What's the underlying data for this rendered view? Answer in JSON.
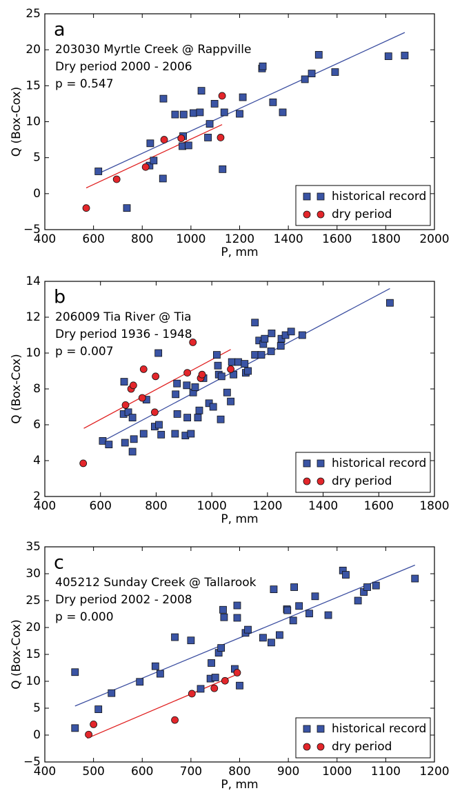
{
  "chart_data": [
    {
      "type": "scatter",
      "panel_label": "a",
      "annotations": [
        "203030 Myrtle Creek @ Rappville",
        "Dry period 2000 - 2006",
        "p = 0.547"
      ],
      "xlabel": "P, mm",
      "ylabel": "Q (Box-Cox)",
      "xlim": [
        400,
        2000
      ],
      "ylim": [
        -5,
        25
      ],
      "xticks": [
        400,
        600,
        800,
        1000,
        1200,
        1400,
        1600,
        1800,
        2000
      ],
      "yticks": [
        {
          "value": -5,
          "label": "−5"
        },
        0,
        5,
        10,
        15,
        20,
        25
      ],
      "legend": "lower right",
      "series": [
        {
          "name": "historical record",
          "color": "#3a54a4",
          "marker": "square",
          "x": [
            620,
            737,
            833,
            830,
            847,
            887,
            885,
            935,
            965,
            968,
            970,
            990,
            1010,
            1037,
            1043,
            1077,
            1070,
            1097,
            1137,
            1130,
            1200,
            1213,
            1292,
            1295,
            1337,
            1377,
            1468,
            1496,
            1525,
            1592,
            1811,
            1878
          ],
          "values": [
            3.1,
            -2,
            7.0,
            3.9,
            4.6,
            13.2,
            2.1,
            11.0,
            6.6,
            8.0,
            11.0,
            6.7,
            11.2,
            11.3,
            14.3,
            9.7,
            7.8,
            12.5,
            11.3,
            3.4,
            11.1,
            13.4,
            17.4,
            17.7,
            12.7,
            11.3,
            15.9,
            16.7,
            19.3,
            16.9,
            19.1,
            19.2
          ]
        },
        {
          "name": "dry period",
          "color": "#e3262b",
          "marker": "circle",
          "x": [
            570,
            695,
            814,
            890,
            960,
            1122,
            1128
          ],
          "values": [
            -2,
            2.0,
            3.7,
            7.5,
            7.7,
            7.8,
            13.6
          ]
        }
      ],
      "fits": [
        {
          "color": "#3b4ea0",
          "x": [
            620,
            1878
          ],
          "values": [
            2.8,
            22.4
          ]
        },
        {
          "color": "#e02020",
          "x": [
            570,
            1128
          ],
          "values": [
            0.8,
            9.6
          ]
        }
      ]
    },
    {
      "type": "scatter",
      "panel_label": "b",
      "annotations": [
        "206009 Tia River @ Tia",
        "Dry period 1936 - 1948",
        "p = 0.007"
      ],
      "xlabel": "P, mm",
      "ylabel": "Q (Box-Cox)",
      "xlim": [
        400,
        1800
      ],
      "ylim": [
        2,
        14
      ],
      "xticks": [
        400,
        600,
        800,
        1000,
        1200,
        1400,
        1600,
        1800
      ],
      "yticks": [
        2,
        4,
        6,
        8,
        10,
        12,
        14
      ],
      "legend": "lower right",
      "series": [
        {
          "name": "historical record",
          "color": "#3a54a4",
          "marker": "square",
          "x": [
            608,
            630,
            685,
            683,
            688,
            700,
            715,
            715,
            720,
            755,
            765,
            795,
            808,
            810,
            818,
            870,
            875,
            876,
            868,
            905,
            910,
            912,
            925,
            933,
            940,
            950,
            955,
            970,
            990,
            1005,
            1018,
            1022,
            1025,
            1032,
            1035,
            1055,
            1068,
            1072,
            1078,
            1095,
            1118,
            1122,
            1130,
            1155,
            1155,
            1170,
            1178,
            1185,
            1190,
            1213,
            1215,
            1248,
            1250,
            1265,
            1285,
            1325,
            1640
          ],
          "values": [
            5.1,
            4.9,
            8.4,
            6.6,
            5.0,
            6.7,
            6.4,
            4.5,
            5.2,
            5.5,
            7.4,
            5.9,
            10.0,
            6.0,
            5.45,
            7.7,
            8.3,
            6.6,
            5.5,
            5.4,
            8.2,
            6.4,
            5.5,
            7.8,
            8.1,
            6.4,
            6.8,
            8.6,
            7.2,
            7.0,
            9.9,
            9.3,
            8.8,
            6.3,
            8.7,
            7.8,
            7.3,
            9.5,
            8.8,
            9.5,
            9.4,
            8.9,
            9.0,
            11.7,
            9.9,
            10.7,
            9.9,
            10.5,
            10.8,
            10.1,
            11.1,
            10.4,
            10.8,
            11.0,
            11.2,
            11.0,
            12.8
          ]
        },
        {
          "name": "dry period",
          "color": "#e3262b",
          "marker": "circle",
          "x": [
            538,
            690,
            710,
            718,
            750,
            755,
            795,
            798,
            912,
            932,
            960,
            965,
            1068
          ],
          "values": [
            3.85,
            7.1,
            8.0,
            8.2,
            7.5,
            9.1,
            6.7,
            8.7,
            8.9,
            10.6,
            8.6,
            8.8,
            9.1
          ]
        }
      ],
      "fits": [
        {
          "color": "#3b4ea0",
          "x": [
            610,
            1640
          ],
          "values": [
            5.1,
            13.6
          ]
        },
        {
          "color": "#e02020",
          "x": [
            540,
            1068
          ],
          "values": [
            5.8,
            10.2
          ]
        }
      ]
    },
    {
      "type": "scatter",
      "panel_label": "c",
      "annotations": [
        "405212 Sunday Creek @ Tallarook",
        "Dry period 2002 - 2008",
        "p = 0.000"
      ],
      "xlabel": "P, mm",
      "ylabel": "Q (Box-Cox)",
      "xlim": [
        400,
        1200
      ],
      "ylim": [
        -5,
        35
      ],
      "xticks": [
        400,
        500,
        600,
        700,
        800,
        900,
        1000,
        1100,
        1200
      ],
      "yticks": [
        {
          "value": -5,
          "label": "−5"
        },
        0,
        5,
        10,
        15,
        20,
        25,
        30,
        35
      ],
      "legend": "lower right",
      "series": [
        {
          "name": "historical record",
          "color": "#3a54a4",
          "marker": "square",
          "x": [
            462,
            462,
            510,
            537,
            595,
            627,
            637,
            667,
            700,
            720,
            740,
            742,
            750,
            757,
            762,
            766,
            768,
            790,
            795,
            795,
            800,
            812,
            817,
            848,
            865,
            870,
            882,
            897,
            898,
            910,
            912,
            922,
            943,
            955,
            982,
            1012,
            1018,
            1043,
            1055,
            1062,
            1080,
            1160
          ],
          "values": [
            11.7,
            1.3,
            4.8,
            7.8,
            9.9,
            12.8,
            11.4,
            18.2,
            17.6,
            8.6,
            10.5,
            13.4,
            10.7,
            15.3,
            16.2,
            23.3,
            21.9,
            12.3,
            24.1,
            21.8,
            9.2,
            19.0,
            19.6,
            18.1,
            17.2,
            27.1,
            18.6,
            23.4,
            23.2,
            21.3,
            27.5,
            24.0,
            22.6,
            25.8,
            22.3,
            30.6,
            29.8,
            25.0,
            26.6,
            27.5,
            27.8,
            29.1
          ]
        },
        {
          "name": "dry period",
          "color": "#e3262b",
          "marker": "circle",
          "x": [
            490,
            500,
            667,
            702,
            748,
            770,
            795
          ],
          "values": [
            0.1,
            2.0,
            2.8,
            7.7,
            8.7,
            10.1,
            11.6
          ]
        }
      ],
      "fits": [
        {
          "color": "#3b4ea0",
          "x": [
            462,
            1160
          ],
          "values": [
            5.4,
            31.6
          ]
        },
        {
          "color": "#e02020",
          "x": [
            487,
            795
          ],
          "values": [
            -0.6,
            11.3
          ]
        }
      ]
    }
  ]
}
